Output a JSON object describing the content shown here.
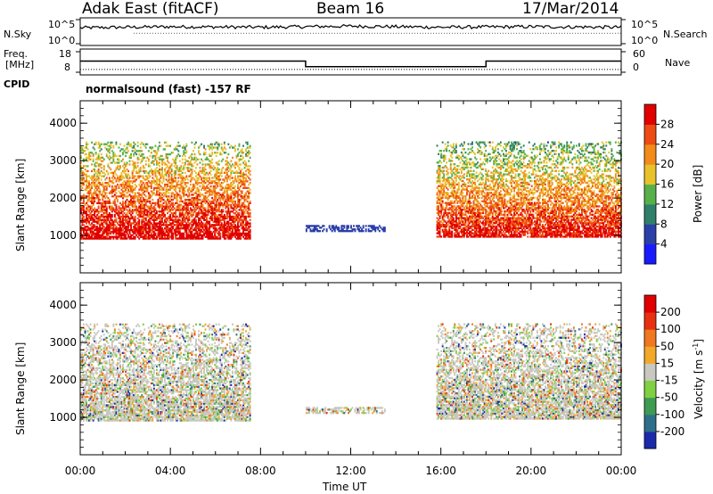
{
  "header": {
    "station": "Adak East (fitACF)",
    "beam": "Beam 16",
    "date": "17/Mar/2014"
  },
  "top_panels": {
    "nsky_label": "N.Sky",
    "nsearch_label": "N.Search",
    "freq_label_line1": "Freq.",
    "freq_label_line2": "[MHz]",
    "nave_label": "Nave",
    "cpid_label": "CPID",
    "noise_ticks_left": [
      "10^5",
      "10^0"
    ],
    "noise_ticks_right": [
      "10^5",
      "10^0"
    ],
    "freq_ticks": [
      "18",
      "8"
    ],
    "nave_ticks": [
      "60",
      "0"
    ],
    "cpid_text": "normalsound (fast) -157 RF"
  },
  "chart_data": [
    {
      "type": "line",
      "title": "",
      "xlabel": "Time UT",
      "ylabel": "",
      "series": [
        {
          "name": "N.Sky",
          "x": [
            0,
            4,
            8,
            12,
            16,
            20,
            24
          ],
          "values": [
            3.2,
            3.4,
            3.3,
            3.5,
            3.3,
            3.4,
            3.3
          ]
        },
        {
          "name": "Freq.",
          "x": [
            0,
            10,
            10,
            18,
            18,
            24
          ],
          "values": [
            13.5,
            13.5,
            10.5,
            10.5,
            13.5,
            13.5
          ]
        }
      ],
      "xlim": [
        0,
        24
      ]
    },
    {
      "type": "heatmap",
      "title": "",
      "xlabel": "Time UT",
      "ylabel": "Slant Range [km]",
      "parameter": "Power [dB]",
      "xlim": [
        0,
        24
      ],
      "ylim": [
        0,
        4600
      ],
      "x_ticks": [
        "00:00",
        "04:00",
        "08:00",
        "12:00",
        "16:00",
        "20:00",
        "00:00"
      ],
      "y_ticks": [
        1000,
        2000,
        3000,
        4000
      ],
      "colorbar": {
        "label": "Power [dB]",
        "ticks": [
          4,
          8,
          12,
          16,
          20,
          24,
          28
        ],
        "colors": [
          "#1a1aff",
          "#2a3fa8",
          "#2f7f6a",
          "#58b04a",
          "#e8c22a",
          "#f28b1a",
          "#ee4a14",
          "#e00000"
        ]
      },
      "echo_regions": [
        {
          "t_start": 0.0,
          "t_end": 7.5,
          "r_low": 900,
          "r_high": 3500,
          "value": 22
        },
        {
          "t_start": 10.0,
          "t_end": 13.5,
          "r_low": 1100,
          "r_high": 1250,
          "value": 6
        },
        {
          "t_start": 15.8,
          "t_end": 24.0,
          "r_low": 950,
          "r_high": 3500,
          "value": 20
        }
      ]
    },
    {
      "type": "heatmap",
      "title": "",
      "xlabel": "Time UT",
      "ylabel": "Slant Range [km]",
      "parameter": "Velocity [m s^-1]",
      "xlim": [
        0,
        24
      ],
      "ylim": [
        0,
        4600
      ],
      "x_ticks": [
        "00:00",
        "04:00",
        "08:00",
        "12:00",
        "16:00",
        "20:00",
        "00:00"
      ],
      "y_ticks": [
        1000,
        2000,
        3000,
        4000
      ],
      "colorbar": {
        "label_main": "Velocity [m s",
        "label_exp": "-1",
        "label_end": "]",
        "ticks": [
          200,
          100,
          50,
          15,
          -15,
          -50,
          -100,
          -200
        ],
        "colors": [
          "#1a2aaa",
          "#2f6f8a",
          "#3f9a52",
          "#7fd042",
          "#c8c8c0",
          "#f2a82a",
          "#f07820",
          "#e83010",
          "#e00000"
        ]
      },
      "echo_regions": [
        {
          "t_start": 0.0,
          "t_end": 7.5,
          "r_low": 900,
          "r_high": 3500,
          "value": 0
        },
        {
          "t_start": 10.0,
          "t_end": 13.5,
          "r_low": 1100,
          "r_high": 1250,
          "value": 0
        },
        {
          "t_start": 15.8,
          "t_end": 24.0,
          "r_low": 950,
          "r_high": 3500,
          "value": 0
        }
      ]
    }
  ]
}
